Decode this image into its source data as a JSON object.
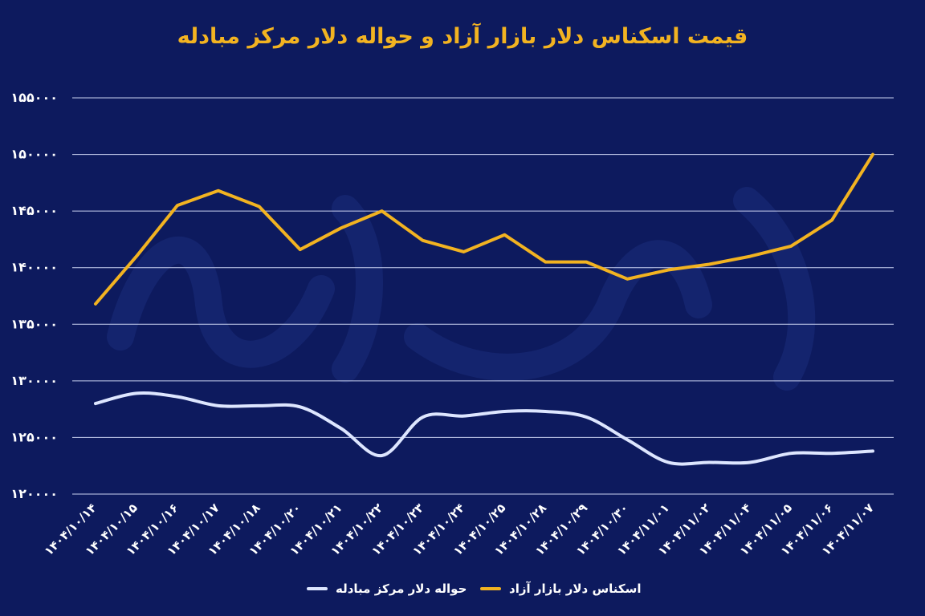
{
  "chart_data": {
    "type": "line",
    "title": "قیمت اسکناس دلار بازار آزاد و حواله دلار مرکز مبادله",
    "categories": [
      "۱۴۰۴/۱۰/۱۴",
      "۱۴۰۴/۱۰/۱۵",
      "۱۴۰۴/۱۰/۱۶",
      "۱۴۰۴/۱۰/۱۷",
      "۱۴۰۴/۱۰/۱۸",
      "۱۴۰۴/۱۰/۲۰",
      "۱۴۰۴/۱۰/۲۱",
      "۱۴۰۴/۱۰/۲۲",
      "۱۴۰۴/۱۰/۲۳",
      "۱۴۰۴/۱۰/۲۴",
      "۱۴۰۴/۱۰/۲۵",
      "۱۴۰۴/۱۰/۲۸",
      "۱۴۰۴/۱۰/۲۹",
      "۱۴۰۴/۱۰/۳۰",
      "۱۴۰۴/۱۱/۰۱",
      "۱۴۰۴/۱۱/۰۲",
      "۱۴۰۴/۱۱/۰۴",
      "۱۴۰۴/۱۱/۰۵",
      "۱۴۰۴/۱۱/۰۶",
      "۱۴۰۴/۱۱/۰۷"
    ],
    "ylim": [
      120000,
      155000
    ],
    "y_ticks": [
      120000,
      125000,
      130000,
      135000,
      140000,
      145000,
      150000,
      155000
    ],
    "y_tick_labels": [
      "۱۲۰۰۰۰",
      "۱۲۵۰۰۰",
      "۱۳۰۰۰۰",
      "۱۳۵۰۰۰",
      "۱۴۰۰۰۰",
      "۱۴۵۰۰۰",
      "۱۵۰۰۰۰",
      "۱۵۵۰۰۰"
    ],
    "grid": true,
    "legend_position": "bottom",
    "series": [
      {
        "name": "اسکناس دلار بازار آزاد",
        "color": "#f2b321",
        "smooth": false,
        "values": [
          136800,
          141000,
          145500,
          146800,
          145400,
          141600,
          143500,
          145000,
          142400,
          141400,
          142900,
          140500,
          140500,
          139000,
          139800,
          140300,
          141000,
          141900,
          144200,
          150000
        ]
      },
      {
        "name": "حواله دلار مرکز مبادله",
        "color": "#dde6ff",
        "smooth": true,
        "values": [
          128000,
          128900,
          128600,
          127800,
          127800,
          127700,
          125800,
          123400,
          126800,
          126900,
          127300,
          127300,
          126800,
          124800,
          122800,
          122800,
          122800,
          123600,
          123600,
          123800
        ]
      }
    ]
  }
}
